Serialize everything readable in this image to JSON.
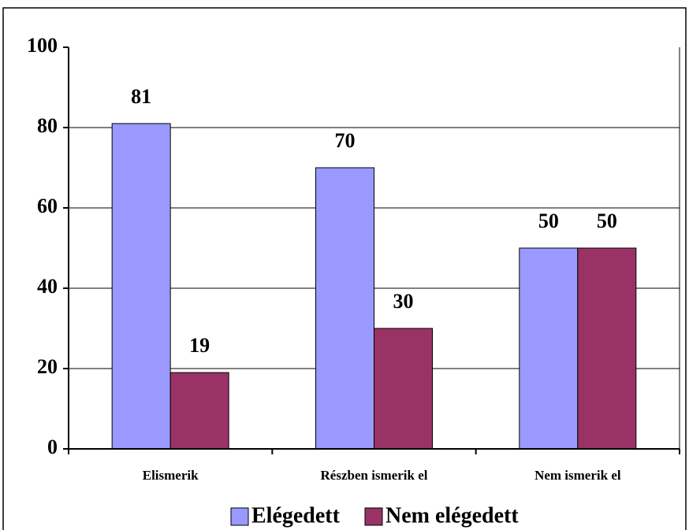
{
  "chart_data": {
    "type": "bar",
    "categories": [
      "Elismerik",
      "Részben ismerik el",
      "Nem ismerik el"
    ],
    "series": [
      {
        "name": "Elégedett",
        "color": "#9999ff",
        "values": [
          81,
          70,
          50
        ]
      },
      {
        "name": "Nem elégedett",
        "color": "#993366",
        "values": [
          19,
          30,
          50
        ]
      }
    ],
    "ylim": [
      0,
      100
    ],
    "yticks": [
      0,
      20,
      40,
      60,
      80,
      100
    ],
    "grid": true,
    "legend": "bottom"
  }
}
